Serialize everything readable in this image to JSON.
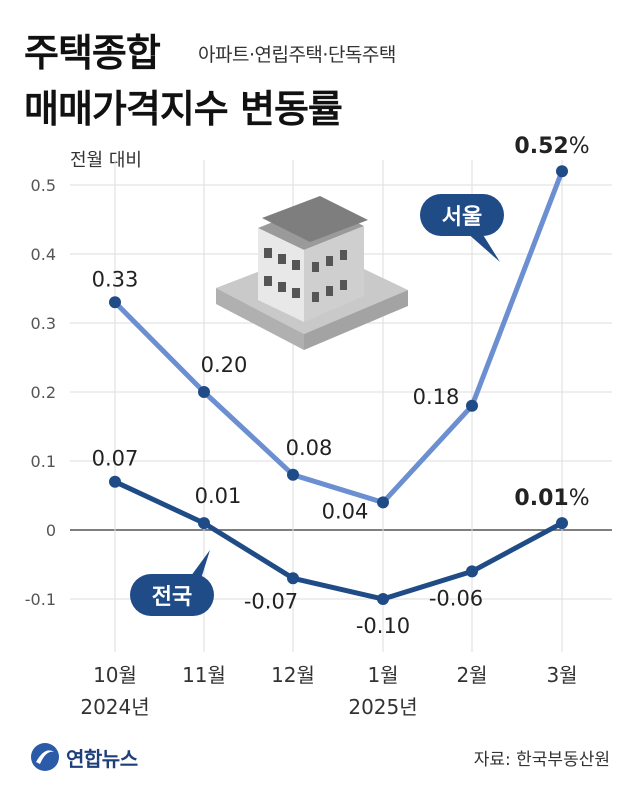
{
  "header": {
    "title_line1": "주택종합",
    "subtitle": "아파트·연립주택·단독주택",
    "title_line2": "매매가격지수 변동률",
    "unit_label": "전월 대비"
  },
  "footer": {
    "source": "자료: 한국부동산원",
    "logo_text": "연합뉴스"
  },
  "colors": {
    "seoul": "#6b8fd0",
    "national": "#1f4b87",
    "grid": "#dddddd",
    "zero_line": "#555555",
    "axis_text": "#555555"
  },
  "chart_data": {
    "type": "line",
    "categories": [
      "10월",
      "11월",
      "12월",
      "1월",
      "2월",
      "3월"
    ],
    "category_years": [
      "2024년",
      "",
      "",
      "2025년",
      "",
      ""
    ],
    "ylim": [
      -0.15,
      0.55
    ],
    "yticks": [
      -0.1,
      0,
      0.1,
      0.2,
      0.3,
      0.4,
      0.5
    ],
    "ytick_labels": [
      "-0.1",
      "0",
      "0.1",
      "0.2",
      "0.3",
      "0.4",
      "0.5"
    ],
    "grid": true,
    "series": [
      {
        "name": "서울",
        "values": [
          0.33,
          0.2,
          0.08,
          0.04,
          0.18,
          0.52
        ],
        "labels": [
          "0.33",
          "0.20",
          "0.08",
          "0.04",
          "0.18",
          "0.52"
        ],
        "last_label_suffix": "%"
      },
      {
        "name": "전국",
        "values": [
          0.07,
          0.01,
          -0.07,
          -0.1,
          -0.06,
          0.01
        ],
        "labels": [
          "0.07",
          "0.01",
          "-0.07",
          "-0.10",
          "-0.06",
          "0.01"
        ],
        "last_label_suffix": "%"
      }
    ]
  }
}
